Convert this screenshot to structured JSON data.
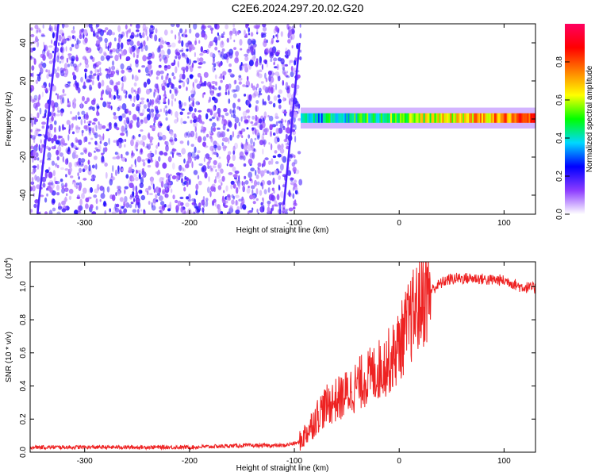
{
  "figure": {
    "title": "C2E6.2024.297.20.02.G20"
  },
  "chart_data": [
    {
      "type": "heatmap",
      "xlabel": "Height of straight line (km)",
      "ylabel": "Frequency (Hz)",
      "xlim": [
        -352,
        130
      ],
      "ylim": [
        -50,
        50
      ],
      "xticks": [
        -300,
        -200,
        -100,
        0,
        100
      ],
      "yticks": [
        -40,
        -20,
        0,
        20,
        40
      ],
      "colorbar": {
        "label": "Normalized spectral amplitude",
        "range": [
          0,
          1
        ],
        "ticks": [
          0.0,
          0.2,
          0.4,
          0.6,
          0.8
        ],
        "tick_labels": [
          "0.0",
          "0.2",
          "0.4",
          "0.6",
          "0.8"
        ],
        "colormap": [
          "#ffffff",
          "#8c3cff",
          "#0000ff",
          "#00d8ff",
          "#00ff00",
          "#ffff00",
          "#ff8000",
          "#ff0000",
          "#ff0060"
        ]
      },
      "features": {
        "noise_region_x": [
          -352,
          -94
        ],
        "signal_band_x": [
          -94,
          130
        ],
        "signal_band_freq_hz": [
          -2,
          3
        ],
        "peak_amplitude": 0.9
      }
    },
    {
      "type": "line",
      "xlabel": "Height of straight line (km)",
      "ylabel": "SNR (10 * v/v)",
      "y_multiplier": "(x10",
      "y_multiplier_exp": "4",
      "xlim": [
        -352,
        130
      ],
      "ylim": [
        0,
        1.15
      ],
      "xticks": [
        -300,
        -200,
        -100,
        0,
        100
      ],
      "yticks": [
        0.0,
        0.2,
        0.4,
        0.6,
        0.8,
        1.0
      ],
      "series": [
        {
          "color": "#ee2222",
          "x": [
            -352,
            -300,
            -250,
            -200,
            -150,
            -110,
            -95,
            -85,
            -75,
            -65,
            -55,
            -45,
            -35,
            -25,
            -15,
            -5,
            5,
            15,
            25,
            35,
            45,
            55,
            65,
            75,
            85,
            95,
            105,
            115,
            130
          ],
          "y": [
            0.03,
            0.03,
            0.03,
            0.03,
            0.04,
            0.04,
            0.06,
            0.15,
            0.25,
            0.3,
            0.33,
            0.38,
            0.43,
            0.47,
            0.52,
            0.58,
            0.72,
            0.85,
            0.95,
            1.0,
            1.04,
            1.05,
            1.05,
            1.05,
            1.04,
            1.04,
            1.03,
            1.0,
            0.99
          ]
        }
      ]
    }
  ]
}
